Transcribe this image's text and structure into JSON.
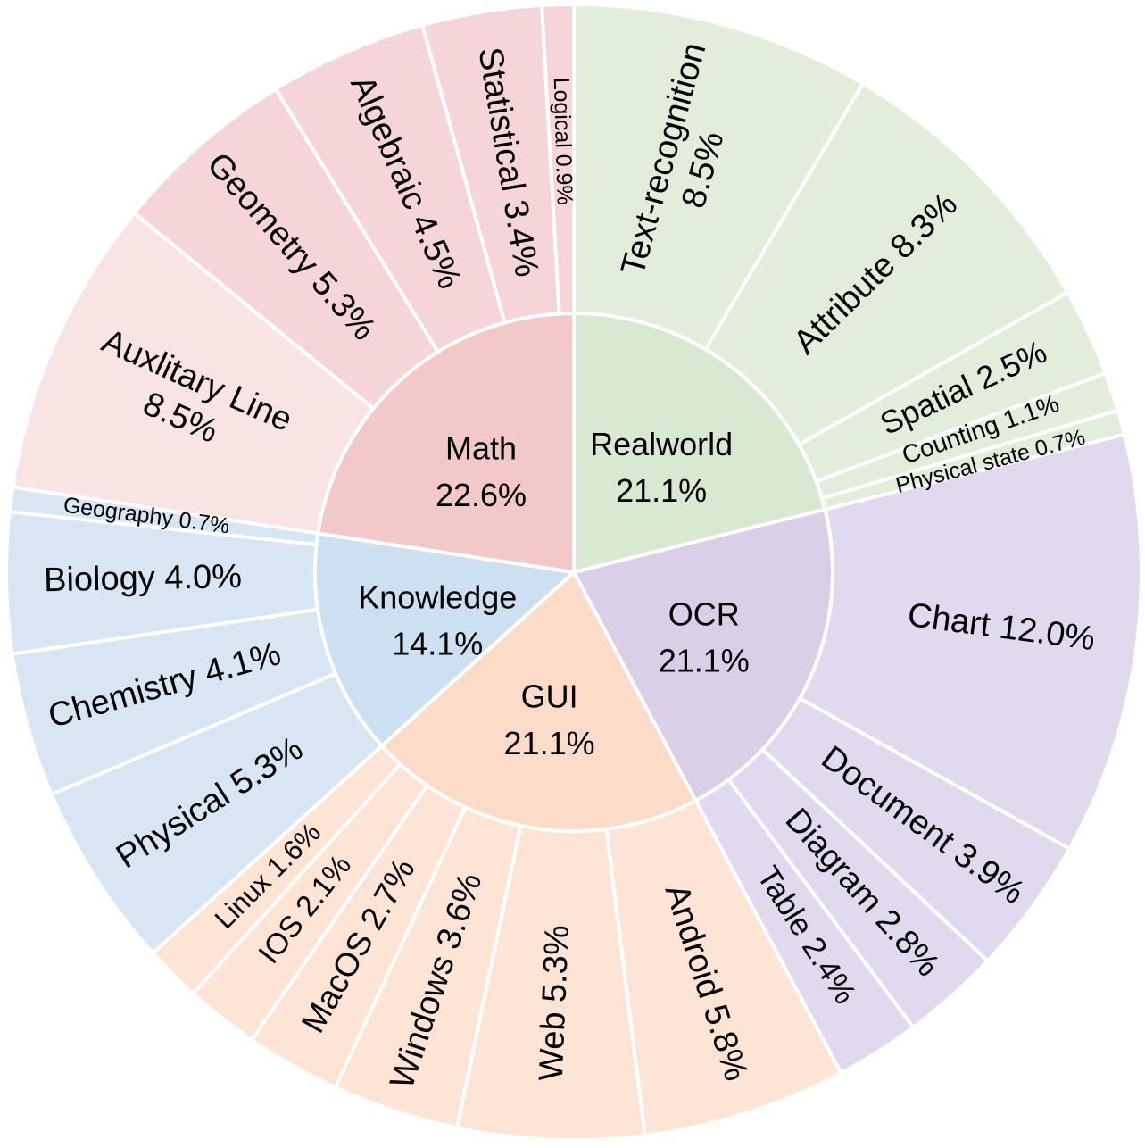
{
  "chart_data": {
    "type": "sunburst",
    "title": "",
    "unit": "%",
    "categories": [
      {
        "name": "Realworld",
        "value": 21.1,
        "label": "21.1%",
        "color": "#d9e8d0",
        "child_color": "#e2eedb",
        "children": [
          {
            "name": "Text-recognition",
            "value": 8.5,
            "label": "8.5%",
            "two_line": true
          },
          {
            "name": "Attribute",
            "value": 8.3,
            "label": "8.3%"
          },
          {
            "name": "Spatial",
            "value": 2.5,
            "label": "2.5%"
          },
          {
            "name": "Counting",
            "value": 1.1,
            "label": "1.1%"
          },
          {
            "name": "Physical state",
            "value": 0.7,
            "label": "0.7%"
          }
        ]
      },
      {
        "name": "OCR",
        "value": 21.1,
        "label": "21.1%",
        "color": "#d9d0e8",
        "child_color": "#e1daee",
        "children": [
          {
            "name": "Chart",
            "value": 12.0,
            "label": "12.0%"
          },
          {
            "name": "Document",
            "value": 3.9,
            "label": "3.9%"
          },
          {
            "name": "Diagram",
            "value": 2.8,
            "label": "2.8%"
          },
          {
            "name": "Table",
            "value": 2.4,
            "label": "2.4%"
          }
        ]
      },
      {
        "name": "GUI",
        "value": 21.1,
        "label": "21.1%",
        "color": "#fcdcc8",
        "child_color": "#fde4d4",
        "children": [
          {
            "name": "Android",
            "value": 5.8,
            "label": "5.8%"
          },
          {
            "name": "Web",
            "value": 5.3,
            "label": "5.3%"
          },
          {
            "name": "Windows",
            "value": 3.6,
            "label": "3.6%"
          },
          {
            "name": "MacOS",
            "value": 2.7,
            "label": "2.7%"
          },
          {
            "name": "IOS",
            "value": 2.1,
            "label": "2.1%"
          },
          {
            "name": "Linux",
            "value": 1.6,
            "label": "1.6%"
          }
        ]
      },
      {
        "name": "Knowledge",
        "value": 14.1,
        "label": "14.1%",
        "color": "#cde0f2",
        "child_color": "#d8e6f4",
        "children": [
          {
            "name": "Physical",
            "value": 5.3,
            "label": "5.3%"
          },
          {
            "name": "Chemistry",
            "value": 4.1,
            "label": "4.1%"
          },
          {
            "name": "Biology",
            "value": 4.0,
            "label": "4.0%"
          },
          {
            "name": "Geography",
            "value": 0.7,
            "label": "0.7%"
          }
        ]
      },
      {
        "name": "Math",
        "value": 22.6,
        "label": "22.6%",
        "color": "#f2c8c8",
        "child_color": "#f5d5d8",
        "children": [
          {
            "name": "Auxlitary Line",
            "value": 8.5,
            "label": "8.5%",
            "two_line": true,
            "color": "#f9e4e4"
          },
          {
            "name": "Geometry",
            "value": 5.3,
            "label": "5.3%"
          },
          {
            "name": "Algebraic",
            "value": 4.5,
            "label": "4.5%"
          },
          {
            "name": "Statistical",
            "value": 3.4,
            "label": "3.4%"
          },
          {
            "name": "Logical",
            "value": 0.9,
            "label": "0.9%"
          }
        ]
      }
    ],
    "start": "top",
    "direction": "clockwise"
  }
}
